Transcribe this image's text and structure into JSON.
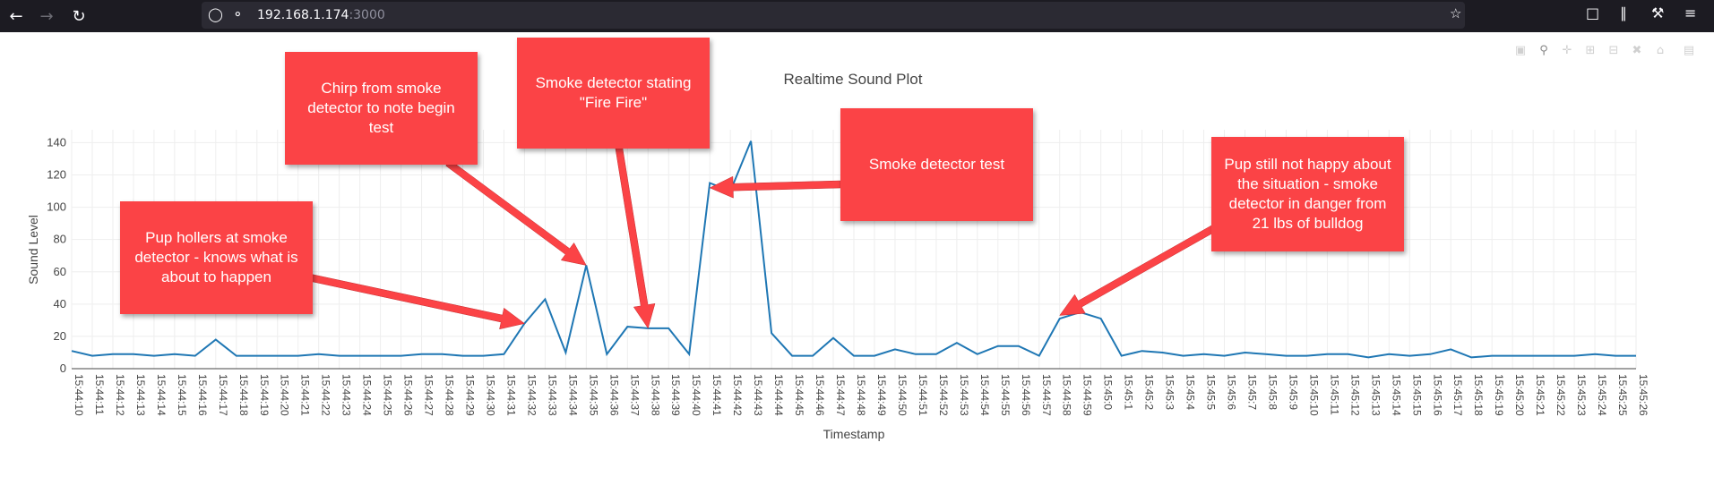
{
  "browser": {
    "url_host": "192.168.1.174",
    "url_port": ":3000",
    "icons": [
      "back-icon",
      "forward-icon",
      "reload-icon",
      "shield-icon",
      "lock-icon",
      "bookmark-star-icon",
      "pocket-icon",
      "library-icon",
      "wrench-icon",
      "menu-icon"
    ]
  },
  "modebar": {
    "icons": [
      "camera-icon",
      "zoom-icon",
      "pan-icon",
      "zoom-in-icon",
      "zoom-out-icon",
      "autoscale-icon",
      "reset-axes-icon",
      "plotly-logo-icon"
    ]
  },
  "colors": {
    "line": "#1f77b4",
    "annotation": "#fb4346",
    "toolbar": "#1c1b22"
  },
  "chart_data": {
    "type": "line",
    "title": "Realtime Sound Plot",
    "xlabel": "Timestamp",
    "ylabel": "Sound Level",
    "ylim": [
      0,
      148
    ],
    "yticks": [
      0,
      20,
      40,
      60,
      80,
      100,
      120,
      140
    ],
    "grid": true,
    "x": [
      "15:44:10",
      "15:44:11",
      "15:44:12",
      "15:44:13",
      "15:44:14",
      "15:44:15",
      "15:44:16",
      "15:44:17",
      "15:44:18",
      "15:44:19",
      "15:44:20",
      "15:44:21",
      "15:44:22",
      "15:44:23",
      "15:44:24",
      "15:44:25",
      "15:44:26",
      "15:44:27",
      "15:44:28",
      "15:44:29",
      "15:44:30",
      "15:44:31",
      "15:44:32",
      "15:44:33",
      "15:44:34",
      "15:44:35",
      "15:44:36",
      "15:44:37",
      "15:44:38",
      "15:44:39",
      "15:44:40",
      "15:44:41",
      "15:44:42",
      "15:44:43",
      "15:44:44",
      "15:44:45",
      "15:44:46",
      "15:44:47",
      "15:44:48",
      "15:44:49",
      "15:44:50",
      "15:44:51",
      "15:44:52",
      "15:44:53",
      "15:44:54",
      "15:44:55",
      "15:44:56",
      "15:44:57",
      "15:44:58",
      "15:44:59",
      "15:45:0",
      "15:45:1",
      "15:45:2",
      "15:45:3",
      "15:45:4",
      "15:45:5",
      "15:45:6",
      "15:45:7",
      "15:45:8",
      "15:45:9",
      "15:45:10",
      "15:45:11",
      "15:45:12",
      "15:45:13",
      "15:45:14",
      "15:45:15",
      "15:45:16",
      "15:45:17",
      "15:45:18",
      "15:45:19",
      "15:45:20",
      "15:45:21",
      "15:45:22",
      "15:45:23",
      "15:45:24",
      "15:45:25",
      "15:45:26"
    ],
    "series": [
      {
        "values": [
          11,
          8,
          9,
          9,
          8,
          9,
          8,
          18,
          8,
          8,
          8,
          8,
          9,
          8,
          8,
          8,
          8,
          9,
          9,
          8,
          8,
          9,
          28,
          43,
          10,
          64,
          9,
          26,
          25,
          25,
          9,
          115,
          110,
          141,
          22,
          8,
          8,
          19,
          8,
          8,
          12,
          9,
          9,
          16,
          9,
          14,
          14,
          8,
          31,
          35,
          31,
          8,
          11,
          10,
          8,
          9,
          8,
          10,
          9,
          8,
          8,
          9,
          9,
          7,
          9,
          8,
          9,
          12,
          7,
          8,
          8,
          8,
          8,
          8,
          9,
          8,
          8
        ]
      }
    ],
    "annotations": [
      {
        "text": "Pup hollers at smoke detector - knows what is about to happen",
        "x": "15:44:32",
        "y": 28
      },
      {
        "text": "Chirp from smoke detector to note begin test",
        "x": "15:44:35",
        "y": 64
      },
      {
        "text": "Smoke detector stating \"Fire Fire\"",
        "x": "15:44:38",
        "y": 25
      },
      {
        "text": "Smoke detector test",
        "x": "15:44:41",
        "y": 112
      },
      {
        "text": "Pup still not happy about the situation - smoke detector in danger from 21 lbs of bulldog",
        "x": "15:44:58",
        "y": 33
      }
    ]
  }
}
